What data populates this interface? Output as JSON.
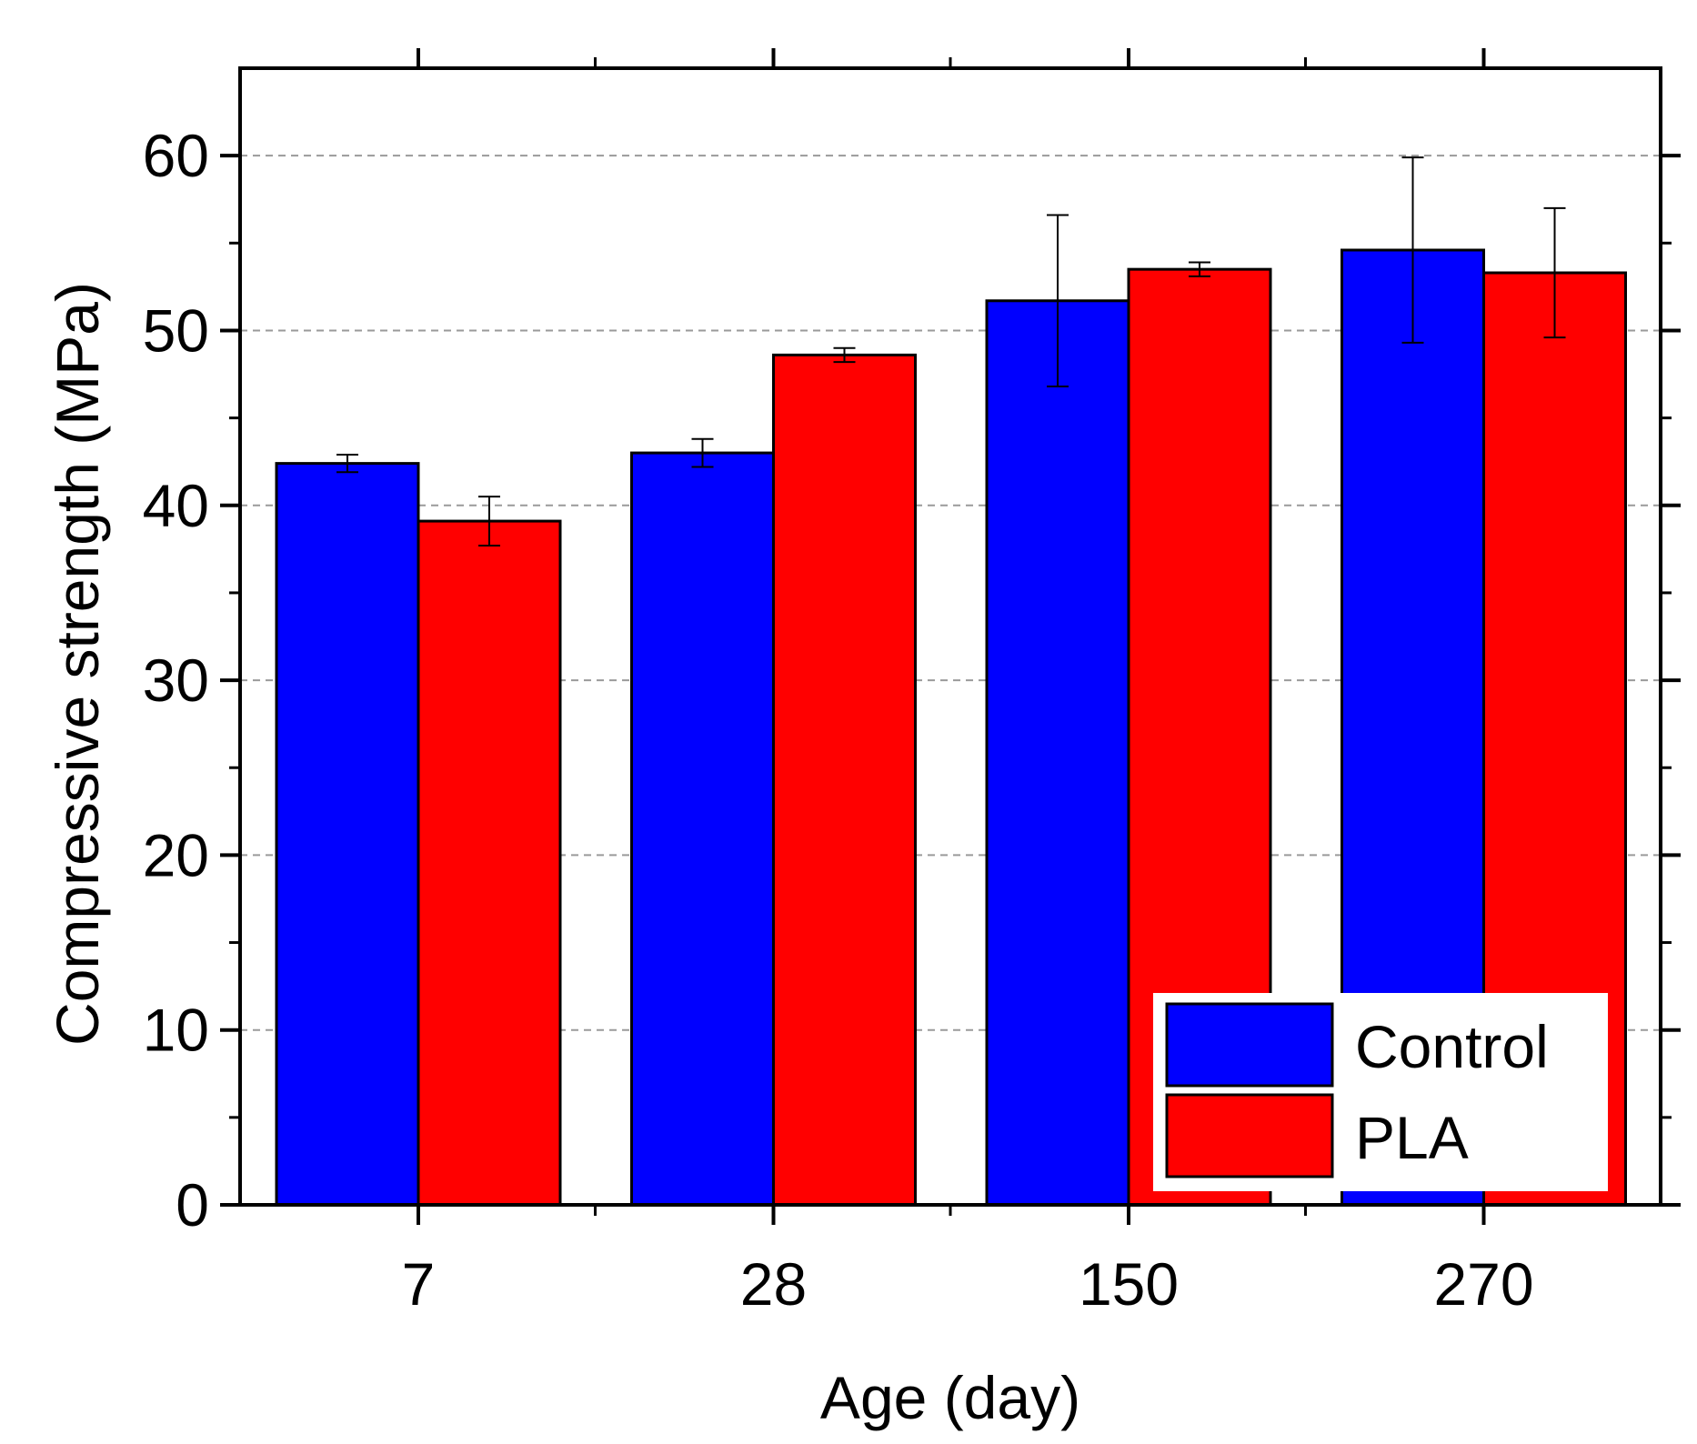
{
  "chart_data": {
    "type": "bar",
    "title": "",
    "xlabel": "Age (day)",
    "ylabel": "Compressive strength (MPa)",
    "categories": [
      "7",
      "28",
      "150",
      "270"
    ],
    "series": [
      {
        "name": "Control",
        "color": "#0000ff",
        "values": [
          42.4,
          43.0,
          51.7,
          54.6
        ],
        "errors": [
          0.5,
          0.8,
          4.9,
          5.3
        ]
      },
      {
        "name": "PLA",
        "color": "#ff0000",
        "values": [
          39.1,
          48.6,
          53.5,
          53.3
        ],
        "errors": [
          1.4,
          0.4,
          0.4,
          3.7
        ]
      }
    ],
    "ylim": [
      0,
      65
    ],
    "yticks": [
      "0",
      "10",
      "20",
      "30",
      "40",
      "50",
      "60"
    ],
    "grid": "horizontal dashed at major ticks",
    "legend_position": "bottom-right"
  }
}
